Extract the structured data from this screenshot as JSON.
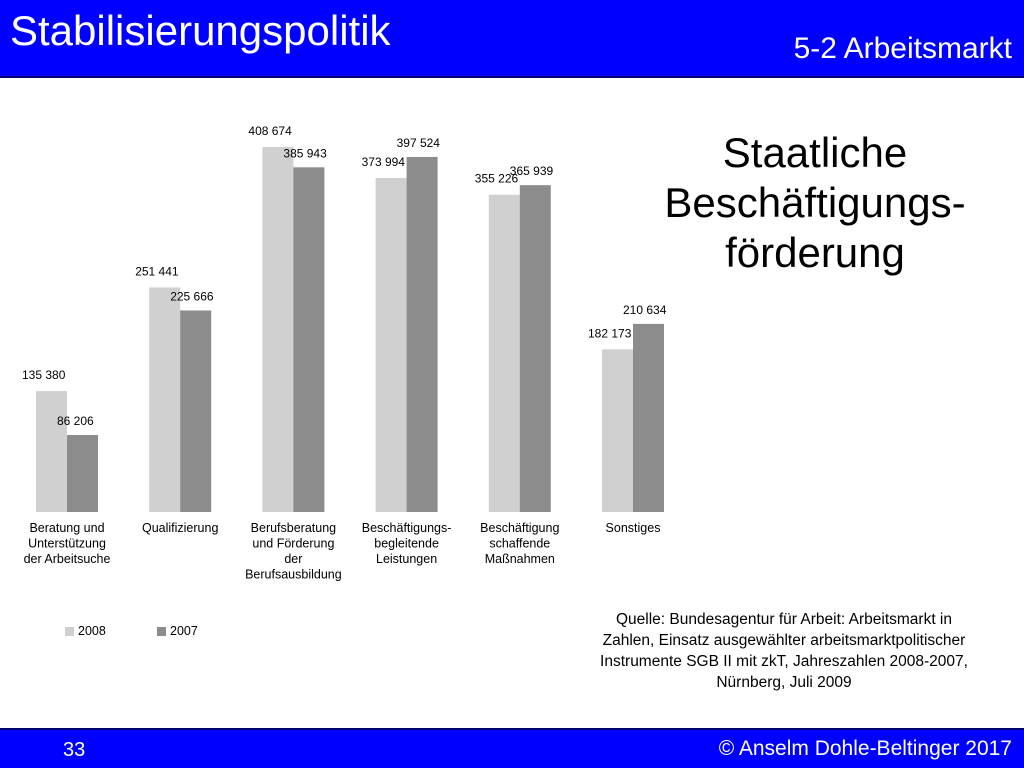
{
  "header": {
    "title": "Stabilisierungspolitik",
    "subtitle": "5-2 Arbeitsmarkt"
  },
  "slide": {
    "title_lines": [
      "Staatliche",
      "Beschäftigungs-",
      "förderung"
    ]
  },
  "source": {
    "lines": [
      "Quelle: Bundesagentur für Arbeit: Arbeitsmarkt in",
      "Zahlen, Einsatz ausgewählter arbeitsmarktpolitischer",
      "Instrumente SGB II mit zkT, Jahreszahlen 2008-2007,",
      "Nürnberg, Juli 2009"
    ]
  },
  "footer": {
    "page_number": "33",
    "copyright": "© Anselm Dohle-Beltinger 2017"
  },
  "chart_data": {
    "type": "bar",
    "categories": [
      [
        "Beratung und",
        "Unterstützung",
        "der Arbeitsuche"
      ],
      [
        "Qualifizierung"
      ],
      [
        "Berufsberatung",
        "und Förderung",
        "der",
        "Berufsausbildung"
      ],
      [
        "Beschäftigungs-",
        "begleitende",
        "Leistungen"
      ],
      [
        "Beschäftigung",
        "schaffende",
        "Maßnahmen"
      ],
      [
        "Sonstiges"
      ]
    ],
    "series": [
      {
        "name": "2008",
        "values": [
          135380,
          251441,
          408674,
          373994,
          355226,
          182173
        ],
        "labels": [
          "135 380",
          "251 441",
          "408 674",
          "373 994",
          "355 226",
          "182 173"
        ],
        "color": "#d0d0d0"
      },
      {
        "name": "2007",
        "values": [
          86206,
          225666,
          385943,
          397524,
          365939,
          210634
        ],
        "labels": [
          "86 206",
          "225 666",
          "385 943",
          "397 524",
          "365 939",
          "210 634"
        ],
        "color": "#8c8c8c"
      }
    ],
    "ylim": [
      0,
      408674
    ],
    "grid": false,
    "legend": "bottom-left"
  }
}
